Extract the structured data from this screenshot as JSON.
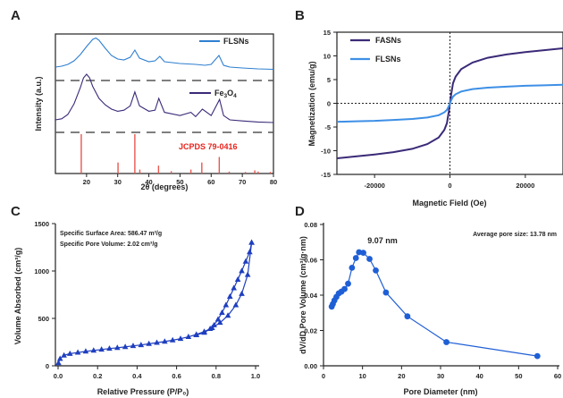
{
  "chart_data": [
    {
      "panel": "A",
      "type": "line",
      "xlabel": "2θ (degrees)",
      "ylabel": "Intensity (a.u.)",
      "xlim": [
        10,
        80
      ],
      "xticks": [
        20,
        30,
        40,
        50,
        60,
        70,
        80
      ],
      "series": [
        {
          "name": "FLSNs",
          "color": "#2e7fd0",
          "x": [
            10,
            12,
            14,
            16,
            18,
            20,
            22,
            23,
            24,
            26,
            28,
            30,
            32,
            34,
            35.5,
            37,
            40,
            42,
            43.5,
            45,
            50,
            55,
            58,
            60,
            62.5,
            64,
            66,
            70,
            75,
            80
          ],
          "y": [
            0.1,
            0.12,
            0.16,
            0.24,
            0.38,
            0.56,
            0.72,
            0.75,
            0.7,
            0.52,
            0.36,
            0.28,
            0.26,
            0.32,
            0.48,
            0.3,
            0.22,
            0.24,
            0.34,
            0.22,
            0.18,
            0.16,
            0.14,
            0.16,
            0.36,
            0.14,
            0.1,
            0.08,
            0.06,
            0.05
          ]
        },
        {
          "name": "Fe3O4",
          "color": "#3b2a78",
          "x": [
            10,
            12,
            14,
            16,
            18,
            19,
            20,
            21,
            22,
            24,
            26,
            28,
            30,
            32,
            34,
            35.5,
            37,
            40,
            42,
            43.2,
            45,
            50,
            53.5,
            55,
            57.2,
            60,
            62.7,
            64,
            66,
            70,
            75,
            80
          ],
          "y": [
            0.1,
            0.12,
            0.2,
            0.4,
            0.7,
            0.88,
            0.95,
            0.88,
            0.72,
            0.5,
            0.38,
            0.3,
            0.26,
            0.28,
            0.36,
            0.62,
            0.36,
            0.26,
            0.28,
            0.5,
            0.24,
            0.18,
            0.24,
            0.16,
            0.3,
            0.18,
            0.48,
            0.18,
            0.1,
            0.08,
            0.06,
            0.05
          ]
        }
      ],
      "reference": {
        "label": "JCPDS 79-0416",
        "label_color": "#e8231c",
        "color": "#e8574f",
        "x": [
          18.3,
          30.1,
          35.5,
          37.1,
          43.1,
          47.2,
          53.5,
          57.0,
          62.6,
          65.8,
          71.0,
          74.0,
          75.1,
          79.0
        ],
        "intensity": [
          1.0,
          0.28,
          1.0,
          0.1,
          0.2,
          0.06,
          0.1,
          0.28,
          0.42,
          0.05,
          0.04,
          0.08,
          0.05,
          0.04
        ]
      }
    },
    {
      "panel": "B",
      "type": "line",
      "xlabel": "Magnetic Field (Oe)",
      "ylabel": "Magnetization (emu/g)",
      "xlim": [
        -30000,
        30000
      ],
      "ylim": [
        -15,
        15
      ],
      "xticks": [
        -20000,
        0,
        20000
      ],
      "yticks": [
        -15,
        -10,
        -5,
        0,
        5,
        10,
        15
      ],
      "series": [
        {
          "name": "FASNs",
          "color": "#3b2a78",
          "x": [
            -30000,
            -25000,
            -20000,
            -15000,
            -10000,
            -6000,
            -3000,
            -1500,
            -800,
            -300,
            0,
            300,
            800,
            1500,
            3000,
            6000,
            10000,
            15000,
            20000,
            25000,
            30000
          ],
          "y": [
            -11.6,
            -11.2,
            -10.8,
            -10.3,
            -9.6,
            -8.6,
            -7.2,
            -5.6,
            -4.2,
            -1.8,
            0,
            1.8,
            4.2,
            5.6,
            7.2,
            8.6,
            9.6,
            10.3,
            10.8,
            11.2,
            11.6
          ]
        },
        {
          "name": "FLSNs",
          "color": "#3d8fe6",
          "x": [
            -30000,
            -25000,
            -20000,
            -15000,
            -10000,
            -6000,
            -3000,
            -1500,
            -800,
            -300,
            0,
            300,
            800,
            1500,
            3000,
            6000,
            10000,
            15000,
            20000,
            25000,
            30000
          ],
          "y": [
            -3.9,
            -3.8,
            -3.7,
            -3.5,
            -3.3,
            -3.0,
            -2.5,
            -1.9,
            -1.4,
            -0.6,
            0,
            0.6,
            1.4,
            1.9,
            2.5,
            3.0,
            3.3,
            3.5,
            3.7,
            3.8,
            3.9
          ]
        }
      ]
    },
    {
      "panel": "C",
      "type": "line",
      "xlabel": "Relative Pressure (P/P₀)",
      "ylabel": "Volume Absorbed (cm³/g)",
      "xlim": [
        0,
        1.0
      ],
      "ylim": [
        0,
        1500
      ],
      "xticks": [
        0.0,
        0.2,
        0.4,
        0.6,
        0.8,
        1.0
      ],
      "yticks": [
        0,
        500,
        1000,
        1500
      ],
      "annotations": [
        "Specific Surface Area: 586.47 m²/g",
        "Specific Pore Volume: 2.02 cm³/g"
      ],
      "series": [
        {
          "name": "adsorption",
          "color": "#1f3fbf",
          "x": [
            0.002,
            0.01,
            0.03,
            0.06,
            0.1,
            0.14,
            0.18,
            0.22,
            0.26,
            0.3,
            0.34,
            0.38,
            0.42,
            0.46,
            0.5,
            0.54,
            0.58,
            0.62,
            0.66,
            0.7,
            0.74,
            0.78,
            0.82,
            0.86,
            0.9,
            0.93,
            0.96,
            0.98
          ],
          "y": [
            30,
            75,
            110,
            128,
            140,
            152,
            162,
            172,
            182,
            190,
            200,
            210,
            220,
            232,
            244,
            256,
            270,
            286,
            306,
            330,
            360,
            400,
            455,
            530,
            640,
            760,
            960,
            1300
          ]
        },
        {
          "name": "desorption",
          "color": "#1f3fbf",
          "x": [
            0.98,
            0.97,
            0.95,
            0.93,
            0.91,
            0.89,
            0.87,
            0.85,
            0.83,
            0.81,
            0.79,
            0.77,
            0.74,
            0.7
          ],
          "y": [
            1300,
            1200,
            1100,
            1000,
            910,
            820,
            730,
            640,
            560,
            490,
            430,
            390,
            350,
            325
          ]
        }
      ]
    },
    {
      "panel": "D",
      "type": "line",
      "xlabel": "Pore Diameter (nm)",
      "ylabel": "dV/dD Pore Volume (cm³/g·nm)",
      "xlim": [
        0,
        60
      ],
      "ylim": [
        0,
        0.08
      ],
      "xticks": [
        0,
        10,
        20,
        30,
        40,
        50,
        60
      ],
      "yticks": [
        0.0,
        0.02,
        0.04,
        0.06,
        0.08
      ],
      "annotations": [
        "Average pore size: 13.78 nm",
        "9.07 nm"
      ],
      "series": [
        {
          "name": "pore",
          "color": "#1f5fd6",
          "x": [
            2.1,
            2.4,
            2.8,
            3.3,
            3.9,
            4.6,
            5.4,
            6.3,
            7.3,
            8.3,
            9.1,
            10.2,
            11.8,
            13.4,
            16.0,
            21.5,
            31.5,
            54.8
          ],
          "y": [
            0.0335,
            0.035,
            0.037,
            0.039,
            0.041,
            0.042,
            0.0435,
            0.0465,
            0.0555,
            0.061,
            0.0643,
            0.064,
            0.0605,
            0.054,
            0.0415,
            0.028,
            0.0134,
            0.0055
          ]
        }
      ]
    }
  ]
}
